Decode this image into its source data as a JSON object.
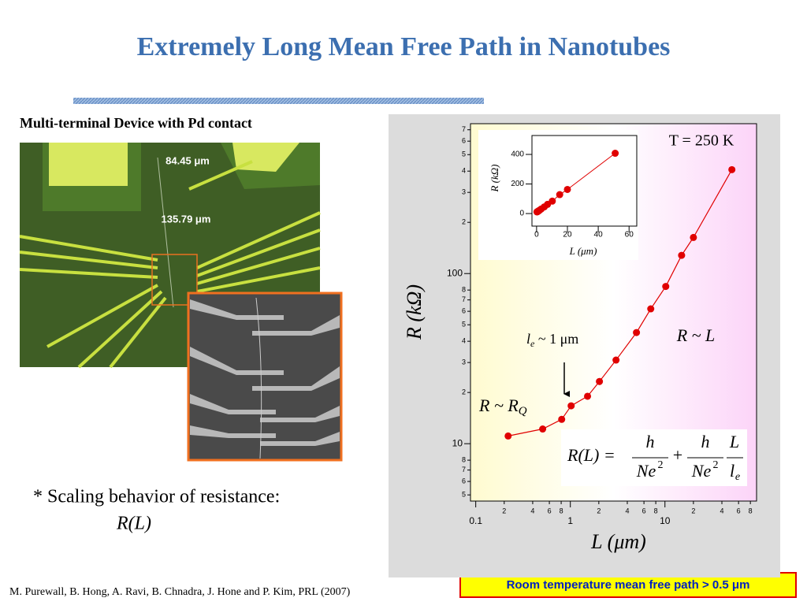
{
  "title": "Extremely Long Mean Free Path in Nanotubes",
  "device_caption": "Multi-terminal Device with Pd contact",
  "photo_labels": [
    "84.45 μm",
    "135.79 μm"
  ],
  "bullet": "* Scaling behavior of resistance:",
  "bullet_formula": "R(L)",
  "citation": "M. Purewall, B. Hong, A. Ravi, B. Chnadra, J. Hone and P. Kim, PRL (2007)",
  "note": "Room temperature mean free path > 0.5 μm",
  "chart_data": [
    {
      "type": "line",
      "x_label": "L (μm)",
      "y_label": "R (kΩ)",
      "xlog": true,
      "ylog": true,
      "color": "#e00000",
      "x": [
        0.22,
        0.51,
        0.81,
        1.02,
        1.52,
        2.03,
        3.04,
        5.0,
        7.08,
        10.2,
        15.0,
        20.0,
        51
      ],
      "series": [
        {
          "values": [
            11.1,
            12.2,
            13.9,
            16.7,
            19.0,
            23.2,
            31,
            45,
            62,
            84,
            128,
            163,
            408
          ]
        }
      ],
      "xlim": [
        0.088,
        93
      ],
      "ylim": [
        4.6,
        760
      ],
      "xticks": [
        0.1,
        {
          "value": 0.2,
          "label": "2"
        },
        {
          "value": 0.4,
          "label": "4"
        },
        {
          "value": 0.6,
          "label": "6"
        },
        {
          "value": 0.8,
          "label": "8"
        },
        1,
        2,
        4,
        6,
        8,
        10,
        {
          "value": 20,
          "label": "2"
        },
        {
          "value": 40,
          "label": "4"
        },
        {
          "value": 60,
          "label": "6"
        },
        {
          "value": 80,
          "label": "8"
        }
      ],
      "yticks": [
        5,
        6,
        7,
        8,
        10,
        {
          "value": 20,
          "label": "2"
        },
        {
          "value": 30,
          "label": "3"
        },
        {
          "value": 40,
          "label": "4"
        },
        {
          "value": 50,
          "label": "5"
        },
        {
          "value": 60,
          "label": "6"
        },
        {
          "value": 70,
          "label": "7"
        },
        {
          "value": 80,
          "label": "8"
        },
        100,
        {
          "value": 200,
          "label": "2"
        },
        {
          "value": 300,
          "label": "3"
        },
        {
          "value": 400,
          "label": "4"
        },
        {
          "value": 500,
          "label": "5"
        },
        {
          "value": 600,
          "label": "6"
        },
        {
          "value": 700,
          "label": "7"
        }
      ],
      "annotations": {
        "temperature": "T = 250 K",
        "linear": "R ~ L",
        "quantum": {
          "text": "R ~ R",
          "sub": "Q"
        },
        "mfp": {
          "text": "l",
          "sub": "e",
          "tail": " ~ 1 μm"
        }
      },
      "equation": {
        "lhs": "R(L) =",
        "num1": "h",
        "den1": "Ne",
        "sup1": "2",
        "plus": "+",
        "num2": "h",
        "den2": "Ne",
        "sup2": "2",
        "num3": "L",
        "den3": "l",
        "sub3": "e"
      }
    },
    {
      "type": "line",
      "x_label": "L (μm)",
      "y_label": "R (kΩ)",
      "xlog": false,
      "ylog": false,
      "color": "#e00000",
      "x": [
        0.22,
        0.51,
        0.81,
        1.02,
        1.52,
        2.03,
        3.04,
        5.0,
        7.08,
        10.2,
        15.0,
        20.0,
        51
      ],
      "series": [
        {
          "values": [
            11.1,
            12.2,
            13.9,
            16.7,
            19.0,
            23.2,
            31,
            45,
            62,
            84,
            128,
            163,
            408
          ]
        }
      ],
      "xlim": [
        -3,
        65
      ],
      "ylim": [
        -85,
        528
      ],
      "xticks": [
        0,
        20,
        40,
        60
      ],
      "yticks": [
        0,
        200,
        400
      ]
    }
  ]
}
